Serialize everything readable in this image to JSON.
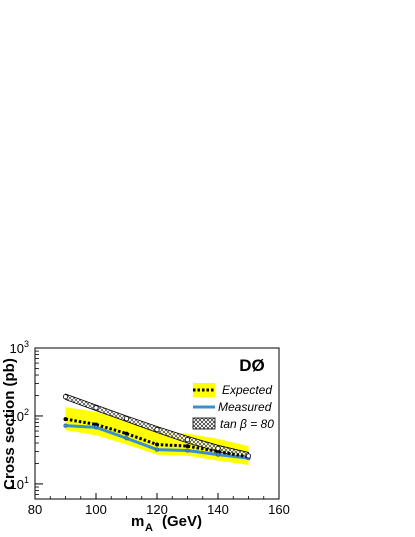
{
  "chart_data": {
    "type": "line",
    "experiment_label": "DØ",
    "xlabel_main": "m",
    "xlabel_sub": "A",
    "xlabel_unit": "(GeV)",
    "ylabel": "Cross section  (pb)",
    "xlim": [
      80,
      160
    ],
    "ylim": [
      6,
      1000
    ],
    "yscale": "log",
    "x_ticks": [
      80,
      100,
      120,
      140,
      160
    ],
    "x_tick_labels": [
      "80",
      "100",
      "120",
      "140",
      "160"
    ],
    "y_ticks": [
      10,
      100,
      1000
    ],
    "y_tick_labels": [
      "10",
      "10",
      "10"
    ],
    "y_tick_exponents": [
      "1",
      "2",
      "3"
    ],
    "legend_position": "top-right",
    "series": [
      {
        "name": "Expected",
        "style": "dotted-line-with-band",
        "x": [
          90,
          100,
          110,
          120,
          130,
          140,
          150
        ],
        "y": [
          90,
          75,
          55,
          38,
          36,
          30,
          25
        ],
        "band_low": [
          62,
          52,
          38,
          27,
          26,
          22,
          19
        ],
        "band_high": [
          135,
          115,
          85,
          60,
          55,
          46,
          36
        ],
        "color": "#000000",
        "band_color": "#ffff00"
      },
      {
        "name": "Measured",
        "style": "solid-line",
        "x": [
          90,
          100,
          110,
          120,
          130,
          140,
          150
        ],
        "y": [
          72,
          68,
          47,
          32,
          31,
          27,
          24
        ],
        "color": "#3b8fd0"
      },
      {
        "name": "tan β = 80",
        "style": "hatched-band",
        "x": [
          90,
          100,
          110,
          120,
          130,
          140,
          150
        ],
        "y_low": [
          175,
          120,
          83,
          57,
          40,
          30,
          23
        ],
        "y_high": [
          210,
          145,
          100,
          70,
          50,
          37,
          29
        ],
        "color": "#000000"
      }
    ]
  }
}
